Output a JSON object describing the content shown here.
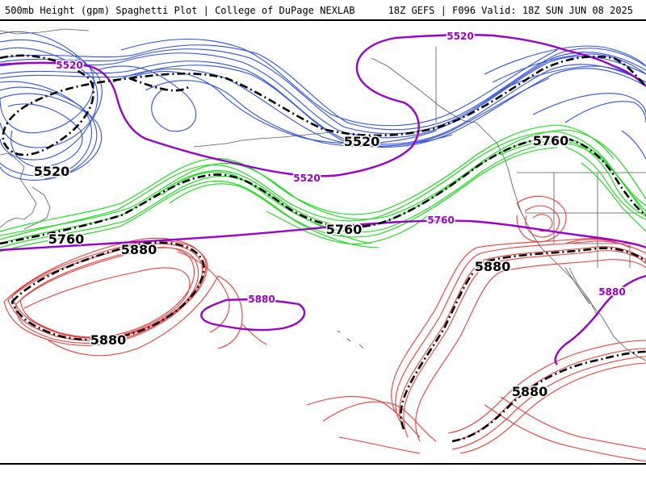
{
  "header": {
    "title": "500mb Height (gpm) Spaghetti Plot | College of DuPage NEXLAB",
    "run_info": "18Z GEFS | F096 Valid: 18Z SUN JUN 08 2025"
  },
  "colors": {
    "c5520": "#2f4fe6",
    "c5760": "#11dd11",
    "c5880": "#ee3a3a",
    "climo": "#9900cc",
    "mean": "#000000",
    "coast": "#444444"
  },
  "contours": {
    "c5520": "5520",
    "c5760": "5760",
    "c5880": "5880"
  },
  "labels": {
    "blue_center": "5520",
    "blue_left": "5520",
    "green_left": "5760",
    "green_center": "5760",
    "green_right": "5760",
    "red_left_top": "5880",
    "red_left_bottom": "5880",
    "red_right_top": "5880",
    "red_right_bottom": "5880",
    "purple_5520_top": "5520",
    "purple_5520_mid": "5520",
    "purple_5520_left": "5520",
    "purple_5760": "5760",
    "purple_5880_left": "5880",
    "purple_5880_right": "5880"
  }
}
